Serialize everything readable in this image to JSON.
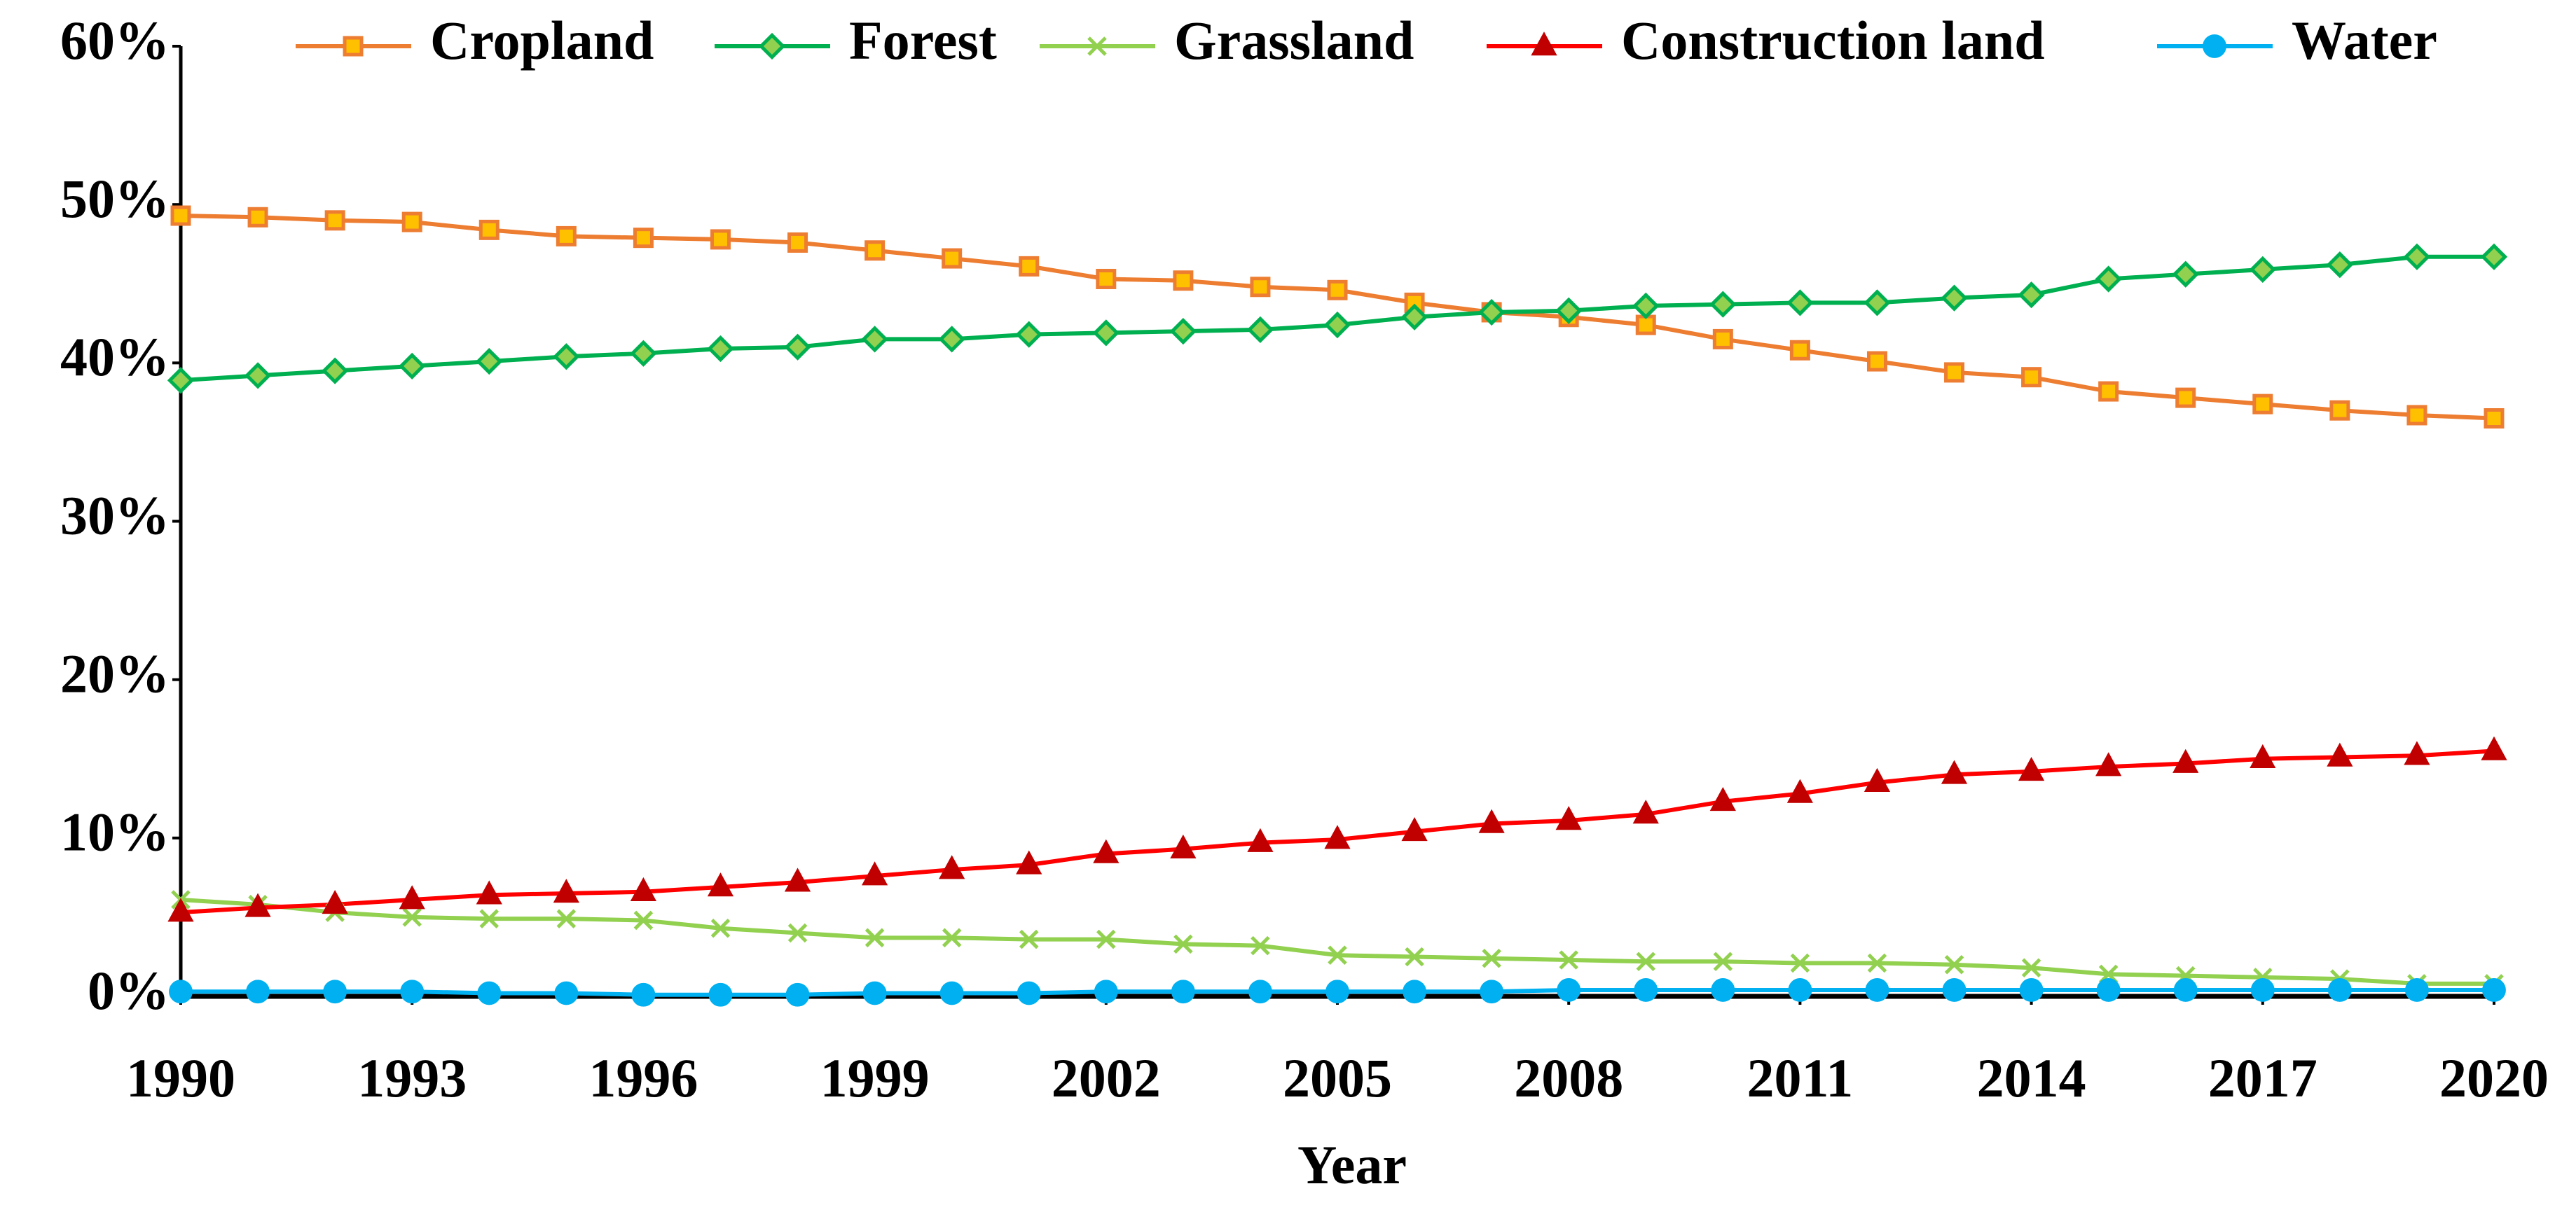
{
  "chart_data": {
    "type": "line",
    "x_label": "Year",
    "x": [
      1990,
      1991,
      1992,
      1993,
      1994,
      1995,
      1996,
      1997,
      1998,
      1999,
      2000,
      2001,
      2002,
      2003,
      2004,
      2005,
      2006,
      2007,
      2008,
      2009,
      2010,
      2011,
      2012,
      2013,
      2014,
      2015,
      2016,
      2017,
      2018,
      2019,
      2020
    ],
    "xlim": [
      1990,
      2020
    ],
    "xticks": [
      1990,
      1993,
      1996,
      1999,
      2002,
      2005,
      2008,
      2011,
      2014,
      2017,
      2020
    ],
    "ylim": [
      0,
      60
    ],
    "yticks": [
      {
        "value": 0,
        "label": "0%"
      },
      {
        "value": 10,
        "label": "10%"
      },
      {
        "value": 20,
        "label": "20%"
      },
      {
        "value": 30,
        "label": "30%"
      },
      {
        "value": 40,
        "label": "40%"
      },
      {
        "value": 50,
        "label": "50%"
      },
      {
        "value": 60,
        "label": "60%"
      }
    ],
    "legend": "top",
    "series": [
      {
        "name": "Cropland",
        "color": "#ed7d31",
        "fill": "#ffc000",
        "marker": "square",
        "values": [
          49.3,
          49.2,
          49.0,
          48.9,
          48.4,
          48.0,
          47.9,
          47.8,
          47.6,
          47.1,
          46.6,
          46.1,
          45.3,
          45.2,
          44.8,
          44.6,
          43.8,
          43.2,
          42.9,
          42.4,
          41.5,
          40.8,
          40.1,
          39.4,
          39.1,
          38.2,
          37.8,
          37.4,
          37.0,
          36.7,
          36.5
        ]
      },
      {
        "name": "Forest",
        "color": "#00b050",
        "fill": "#92d050",
        "marker": "diamond",
        "values": [
          38.9,
          39.2,
          39.5,
          39.8,
          40.1,
          40.4,
          40.6,
          40.9,
          41.0,
          41.5,
          41.5,
          41.8,
          41.9,
          42.0,
          42.1,
          42.4,
          42.9,
          43.2,
          43.3,
          43.6,
          43.7,
          43.8,
          43.8,
          44.1,
          44.3,
          45.3,
          45.6,
          45.9,
          46.2,
          46.7,
          46.7
        ]
      },
      {
        "name": "Grassland",
        "color": "#92d050",
        "fill": "#92d050",
        "marker": "x",
        "values": [
          6.1,
          5.8,
          5.3,
          5.0,
          4.9,
          4.9,
          4.8,
          4.3,
          4.0,
          3.7,
          3.7,
          3.6,
          3.6,
          3.3,
          3.2,
          2.6,
          2.5,
          2.4,
          2.3,
          2.2,
          2.2,
          2.1,
          2.1,
          2.0,
          1.8,
          1.4,
          1.3,
          1.2,
          1.1,
          0.8,
          0.8
        ]
      },
      {
        "name": "Construction land",
        "color": "#ff0000",
        "fill": "#c00000",
        "marker": "triangle",
        "values": [
          5.3,
          5.6,
          5.8,
          6.1,
          6.4,
          6.5,
          6.6,
          6.9,
          7.2,
          7.6,
          8.0,
          8.3,
          9.0,
          9.3,
          9.7,
          9.9,
          10.4,
          10.9,
          11.1,
          11.5,
          12.3,
          12.8,
          13.5,
          14.0,
          14.2,
          14.5,
          14.7,
          15.0,
          15.1,
          15.2,
          15.5
        ]
      },
      {
        "name": "Water",
        "color": "#00b0f0",
        "fill": "#00b0f0",
        "marker": "circle",
        "values": [
          0.3,
          0.3,
          0.3,
          0.3,
          0.2,
          0.2,
          0.1,
          0.1,
          0.1,
          0.2,
          0.2,
          0.2,
          0.3,
          0.3,
          0.3,
          0.3,
          0.3,
          0.3,
          0.4,
          0.4,
          0.4,
          0.4,
          0.4,
          0.4,
          0.4,
          0.4,
          0.4,
          0.4,
          0.4,
          0.4,
          0.4
        ]
      }
    ]
  }
}
